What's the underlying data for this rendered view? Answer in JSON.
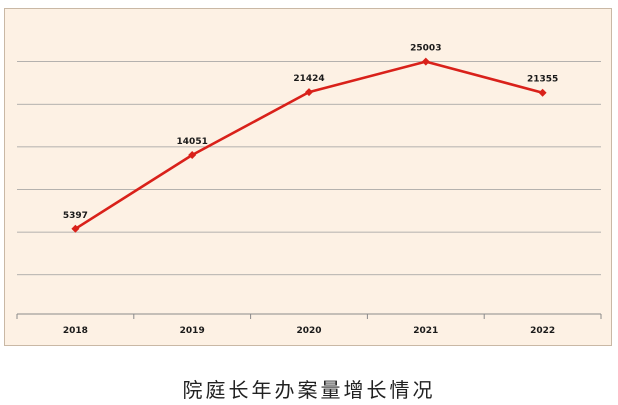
{
  "caption": "院庭长年办案量增长情况",
  "colors": {
    "line": "#d9211a",
    "background": "#fdf1e4",
    "grid": "#9c9c9c"
  },
  "chart_data": {
    "type": "line",
    "title": "",
    "xlabel": "",
    "ylabel": "",
    "categories": [
      "2018",
      "2019",
      "2020",
      "2021",
      "2022"
    ],
    "series": [
      {
        "values": [
          5397,
          14051,
          21424,
          25003,
          21355
        ]
      }
    ],
    "ylim": [
      -4600,
      30000
    ],
    "gridlines": [
      0,
      5000,
      10000,
      15000,
      20000,
      25000
    ],
    "y_tick_labels_shown": false,
    "grid": true,
    "legend": "none",
    "marker": "diamond",
    "data_labels": true
  }
}
